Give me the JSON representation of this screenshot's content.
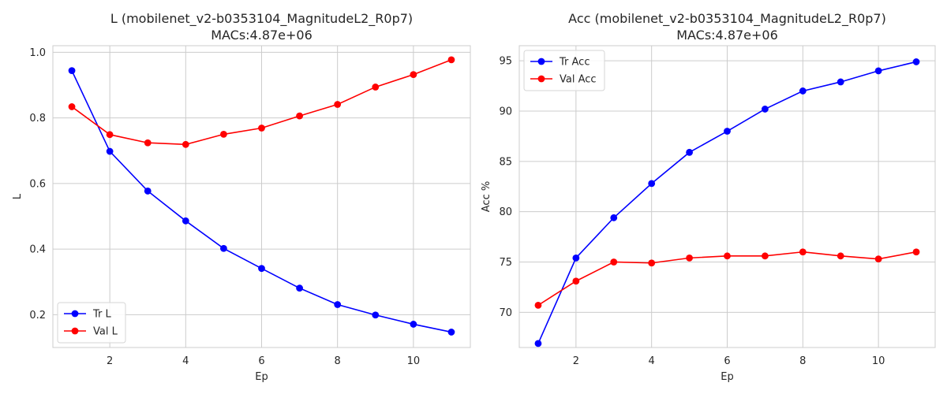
{
  "chart_data": [
    {
      "type": "line",
      "title_line1": "L (mobilenet_v2-b0353104_MagnitudeL2_R0p7)",
      "title_line2": "MACs:4.87e+06",
      "xlabel": "Ep",
      "ylabel": "L",
      "xlim": [
        0.5,
        11.5
      ],
      "ylim": [
        0.1,
        1.02
      ],
      "xticks": [
        2,
        4,
        6,
        8,
        10
      ],
      "yticks": [
        0.2,
        0.4,
        0.6,
        0.8,
        1.0
      ],
      "ytick_labels": [
        "0.2",
        "0.4",
        "0.6",
        "0.8",
        "1.0"
      ],
      "grid": true,
      "legend_position": "lower-left",
      "x": [
        1,
        2,
        3,
        4,
        5,
        6,
        7,
        8,
        9,
        10,
        11
      ],
      "series": [
        {
          "name": "Tr L",
          "color": "#0000ff",
          "values": [
            0.944,
            0.698,
            0.577,
            0.486,
            0.402,
            0.341,
            0.281,
            0.231,
            0.199,
            0.171,
            0.147
          ]
        },
        {
          "name": "Val L",
          "color": "#ff0000",
          "values": [
            0.834,
            0.749,
            0.724,
            0.719,
            0.75,
            0.769,
            0.806,
            0.841,
            0.894,
            0.932,
            0.977
          ]
        }
      ]
    },
    {
      "type": "line",
      "title_line1": "Acc (mobilenet_v2-b0353104_MagnitudeL2_R0p7)",
      "title_line2": "MACs:4.87e+06",
      "xlabel": "Ep",
      "ylabel": "Acc %",
      "xlim": [
        0.5,
        11.5
      ],
      "ylim": [
        66.5,
        96.5
      ],
      "xticks": [
        2,
        4,
        6,
        8,
        10
      ],
      "yticks": [
        70,
        75,
        80,
        85,
        90,
        95
      ],
      "ytick_labels": [
        "70",
        "75",
        "80",
        "85",
        "90",
        "95"
      ],
      "grid": true,
      "legend_position": "upper-left",
      "x": [
        1,
        2,
        3,
        4,
        5,
        6,
        7,
        8,
        9,
        10,
        11
      ],
      "series": [
        {
          "name": "Tr Acc",
          "color": "#0000ff",
          "values": [
            66.9,
            75.4,
            79.4,
            82.8,
            85.9,
            88.0,
            90.2,
            92.0,
            92.9,
            94.0,
            94.9
          ]
        },
        {
          "name": "Val Acc",
          "color": "#ff0000",
          "values": [
            70.7,
            73.1,
            75.0,
            74.9,
            75.4,
            75.6,
            75.6,
            76.0,
            75.6,
            75.3,
            76.0
          ]
        }
      ]
    }
  ]
}
